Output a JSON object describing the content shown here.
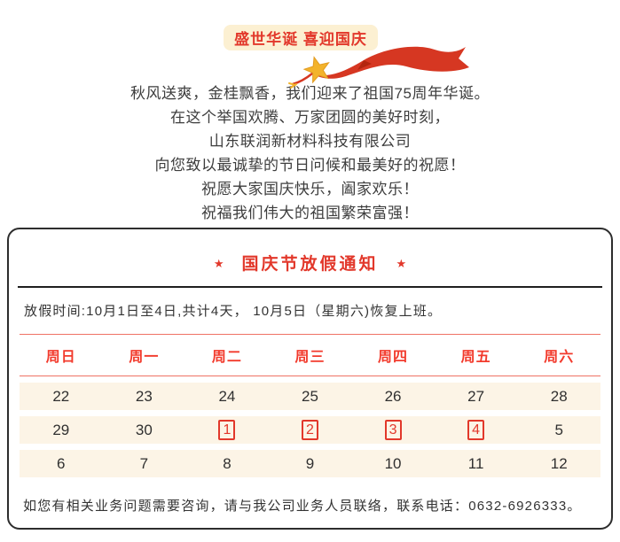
{
  "banner": {
    "title": "盛世华诞 喜迎国庆"
  },
  "greeting": {
    "lines": [
      "秋风送爽，金桂飘香，我们迎来了祖国75周年华诞。",
      "在这个举国欢腾、万家团圆的美好时刻，",
      "山东联润新材料科技有限公司",
      "向您致以最诚挚的节日问候和最美好的祝愿！",
      "祝愿大家国庆快乐，阖家欢乐！",
      "祝福我们伟大的祖国繁荣富强！"
    ]
  },
  "notice": {
    "star_icon": "★",
    "title": "国庆节放假通知",
    "holiday_time": "放假时间:10月1日至4日,共计4天， 10月5日（星期六)恢复上班。",
    "calendar": {
      "weekdays": [
        "周日",
        "周一",
        "周二",
        "周三",
        "周四",
        "周五",
        "周六"
      ],
      "rows": [
        [
          {
            "day": "22",
            "holiday": false
          },
          {
            "day": "23",
            "holiday": false
          },
          {
            "day": "24",
            "holiday": false
          },
          {
            "day": "25",
            "holiday": false
          },
          {
            "day": "26",
            "holiday": false
          },
          {
            "day": "27",
            "holiday": false
          },
          {
            "day": "28",
            "holiday": false
          }
        ],
        [
          {
            "day": "29",
            "holiday": false
          },
          {
            "day": "30",
            "holiday": false
          },
          {
            "day": "1",
            "holiday": true
          },
          {
            "day": "2",
            "holiday": true
          },
          {
            "day": "3",
            "holiday": true
          },
          {
            "day": "4",
            "holiday": true
          },
          {
            "day": "5",
            "holiday": false
          }
        ],
        [
          {
            "day": "6",
            "holiday": false
          },
          {
            "day": "7",
            "holiday": false
          },
          {
            "day": "8",
            "holiday": false
          },
          {
            "day": "9",
            "holiday": false
          },
          {
            "day": "10",
            "holiday": false
          },
          {
            "day": "11",
            "holiday": false
          },
          {
            "day": "12",
            "holiday": false
          }
        ]
      ]
    },
    "contact": "如您有相关业务问题需要咨询，请与我公司业务人员联络，联系电话：0632-6926333。"
  },
  "colors": {
    "accent_red": "#e2382b",
    "bright_red": "#f23a2c",
    "line_red": "#ef7264",
    "band_cream": "#fcf4e6",
    "banner_cream": "#fcf0d2",
    "ribbon_red": "#d63722",
    "ribbon_dark": "#b3260f",
    "star_gold": "#f3b32b",
    "border_dark": "#2d2d2d",
    "text_dark": "#3d3d3d"
  }
}
